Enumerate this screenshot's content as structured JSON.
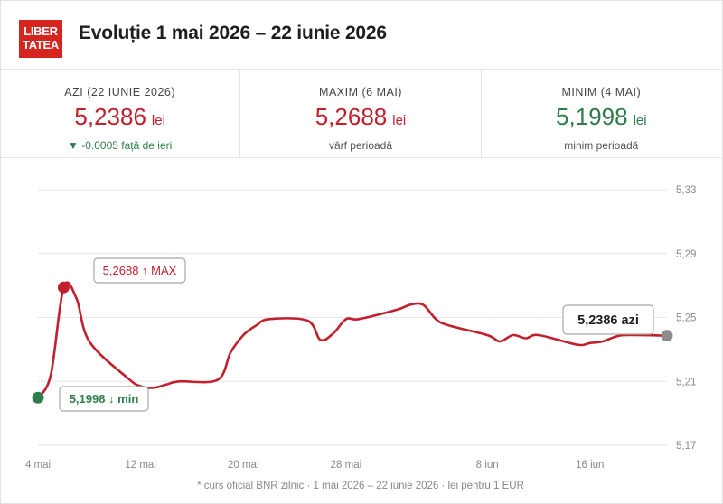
{
  "header": {
    "logo_line1": "LIBER",
    "logo_line2": "TATEA",
    "title": "Evoluție 1 mai 2026 – 22 iunie 2026"
  },
  "stats": {
    "today": {
      "label": "AZI (22 IUNIE 2026)",
      "value": "5,2386",
      "unit": "lei",
      "sub": "▼ -0.0005 față de ieri"
    },
    "max": {
      "label": "MAXIM (6 MAI)",
      "value": "5,2688",
      "unit": "lei",
      "sub": "vârf perioadă"
    },
    "min": {
      "label": "MINIM (4 MAI)",
      "value": "5,1998",
      "unit": "lei",
      "sub": "minim perioadă"
    }
  },
  "colors": {
    "line": "#c3202e",
    "max_point": "#c3202e",
    "min_point": "#2e7d4a",
    "today_point": "#8c8c8c",
    "grid": "#e6e6e6",
    "brand": "#d6251e"
  },
  "chart_data": {
    "type": "line",
    "title": "",
    "xlabel": "",
    "ylabel": "",
    "ylim": [
      5.17,
      5.33
    ],
    "yticks": [
      5.17,
      5.21,
      5.25,
      5.29,
      5.33
    ],
    "ytick_labels": [
      "5,17",
      "5,21",
      "5,25",
      "5,29",
      "5,33"
    ],
    "xticks": [
      "2026-05-04",
      "2026-05-12",
      "2026-05-20",
      "2026-05-28",
      "2026-06-08",
      "2026-06-16"
    ],
    "xtick_labels": [
      "4 mai",
      "12 mai",
      "20 mai",
      "28 mai",
      "8 iun",
      "16 iun"
    ],
    "grid": true,
    "series": [
      {
        "x": [
          "2026-05-04",
          "2026-05-05",
          "2026-05-06",
          "2026-05-07",
          "2026-05-08",
          "2026-05-11",
          "2026-05-12",
          "2026-05-13",
          "2026-05-14",
          "2026-05-15",
          "2026-05-18",
          "2026-05-19",
          "2026-05-20",
          "2026-05-21",
          "2026-05-22",
          "2026-05-25",
          "2026-05-26",
          "2026-05-27",
          "2026-05-28",
          "2026-05-29",
          "2026-06-01",
          "2026-06-02",
          "2026-06-03",
          "2026-06-04",
          "2026-06-05",
          "2026-06-08",
          "2026-06-09",
          "2026-06-10",
          "2026-06-11",
          "2026-06-12",
          "2026-06-15",
          "2026-06-16",
          "2026-06-17",
          "2026-06-18",
          "2026-06-19",
          "2026-06-22"
        ],
        "y": [
          5.1998,
          5.214,
          5.2688,
          5.262,
          5.235,
          5.212,
          5.207,
          5.206,
          5.208,
          5.21,
          5.211,
          5.228,
          5.239,
          5.245,
          5.249,
          5.248,
          5.236,
          5.24,
          5.249,
          5.249,
          5.255,
          5.258,
          5.258,
          5.249,
          5.245,
          5.239,
          5.235,
          5.239,
          5.237,
          5.239,
          5.233,
          5.234,
          5.235,
          5.238,
          5.239,
          5.2386
        ]
      }
    ],
    "annotations": {
      "max": "5,2688 ↑ MAX",
      "min": "5,1998 ↓ min",
      "today": "5,2386 azi"
    }
  },
  "footnote": "* curs oficial BNR zilnic · 1 mai 2026 – 22 iunie 2026 · lei pentru 1 EUR"
}
